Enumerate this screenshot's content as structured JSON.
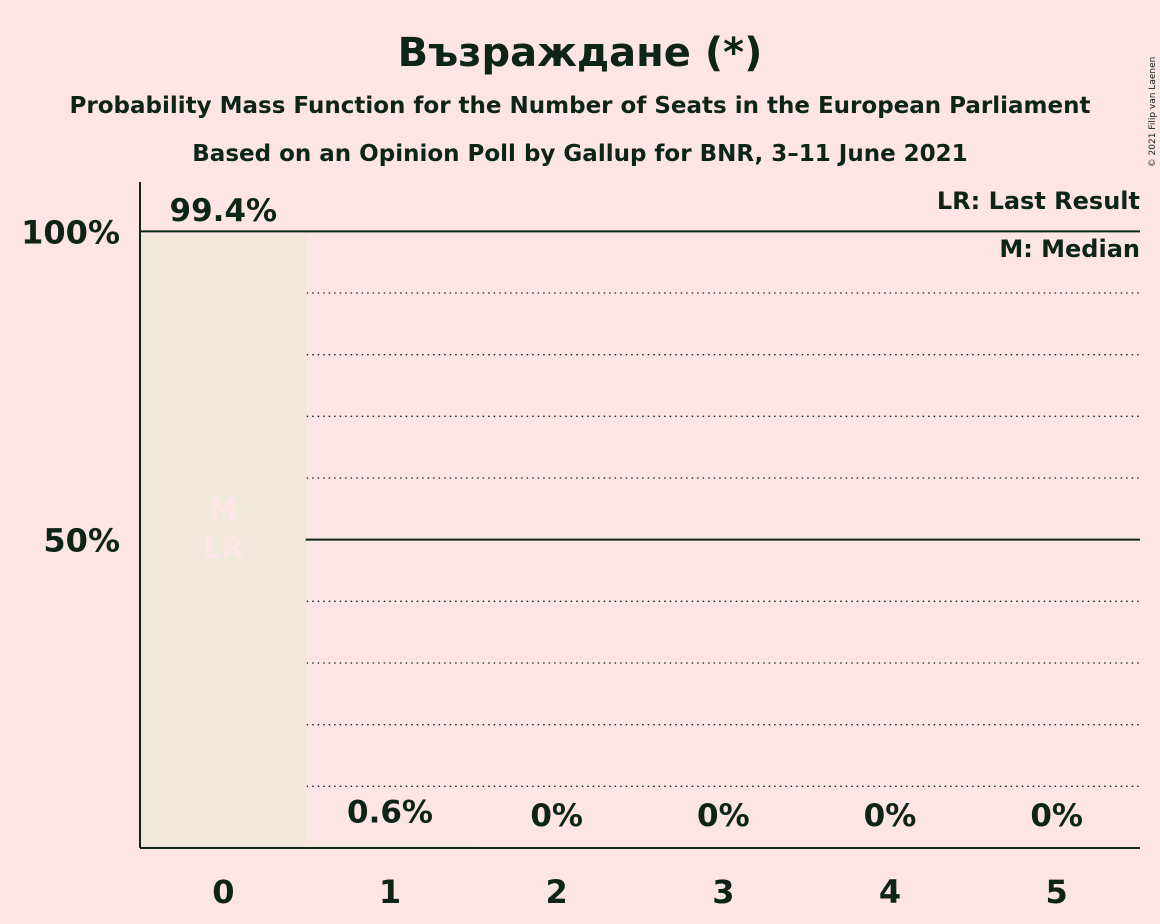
{
  "chart_data": {
    "type": "bar",
    "title": "Възраждане (*)",
    "subtitle": "Probability Mass Function for the Number of Seats in the European Parliament",
    "subtitle2": "Based on an Opinion Poll by Gallup for BNR, 3–11 June 2021",
    "categories": [
      "0",
      "1",
      "2",
      "3",
      "4",
      "5"
    ],
    "values": [
      99.4,
      0.6,
      0,
      0,
      0,
      0
    ],
    "value_labels": [
      "99.4%",
      "0.6%",
      "0%",
      "0%",
      "0%",
      "0%"
    ],
    "ylim": [
      0,
      108
    ],
    "yticks": [
      {
        "value": 50,
        "label": "50%"
      },
      {
        "value": 100,
        "label": "100%"
      }
    ],
    "grid_minor_step": 10,
    "legend": {
      "placement": "top-right",
      "entries": [
        "LR: Last Result",
        "M: Median"
      ]
    },
    "bar_markers": {
      "category_index": 0,
      "lines": [
        "M",
        "LR"
      ]
    },
    "copyright": "© 2021 Filip van Laenen",
    "colors": {
      "background": "#fde5e5",
      "bar": "#f2e8da",
      "text": "#0d2418",
      "marker": "#fde5e5"
    }
  }
}
